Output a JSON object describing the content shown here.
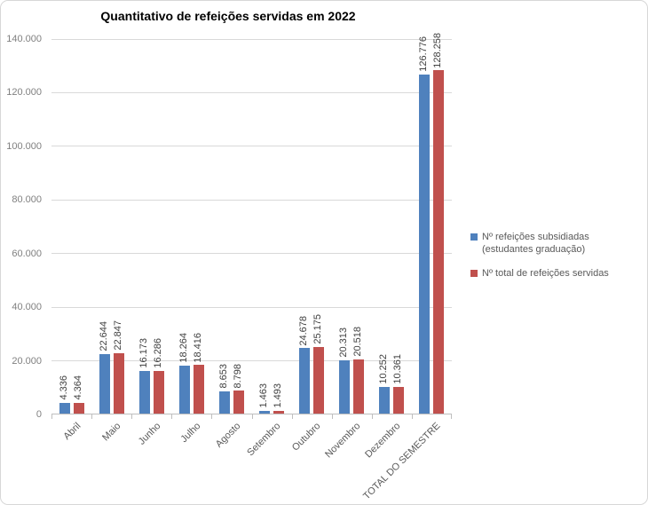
{
  "chart_data": {
    "type": "bar",
    "title": "Quantitativo de refeições servidas em 2022",
    "categories": [
      "Abril",
      "Maio",
      "Junho",
      "Julho",
      "Agosto",
      "Setembro",
      "Outubro",
      "Novembro",
      "Dezembro",
      "TOTAL DO SEMESTRE"
    ],
    "series": [
      {
        "name": "Nº refeições subsidiadas (estudantes graduação)",
        "color": "#4F81BD",
        "values": [
          4336,
          22644,
          16173,
          18264,
          8653,
          1463,
          24678,
          20313,
          10252,
          126776
        ],
        "labels": [
          "4.336",
          "22.644",
          "16.173",
          "18.264",
          "8.653",
          "1.463",
          "24.678",
          "20.313",
          "10.252",
          "126.776"
        ]
      },
      {
        "name": "Nº total de refeições servidas",
        "color": "#C0504D",
        "values": [
          4364,
          22847,
          16286,
          18416,
          8798,
          1493,
          25175,
          20518,
          10361,
          128258
        ],
        "labels": [
          "4.364",
          "22.847",
          "16.286",
          "18.416",
          "8.798",
          "1.493",
          "25.175",
          "20.518",
          "10.361",
          "128.258"
        ]
      }
    ],
    "y_axis": {
      "min": 0,
      "max": 140000,
      "tick_step": 20000,
      "tick_labels": [
        "0",
        "20.000",
        "40.000",
        "60.000",
        "80.000",
        "100.000",
        "120.000",
        "140.000"
      ]
    },
    "grid": true,
    "legend_position": "right",
    "data_labels_rotated": true,
    "colors": {
      "grid": "#D9D9D9",
      "axis": "#BFBFBF",
      "value_label": "#404040",
      "tick_text": "#808080",
      "legend_text": "#595959",
      "title_text": "#000000"
    }
  }
}
